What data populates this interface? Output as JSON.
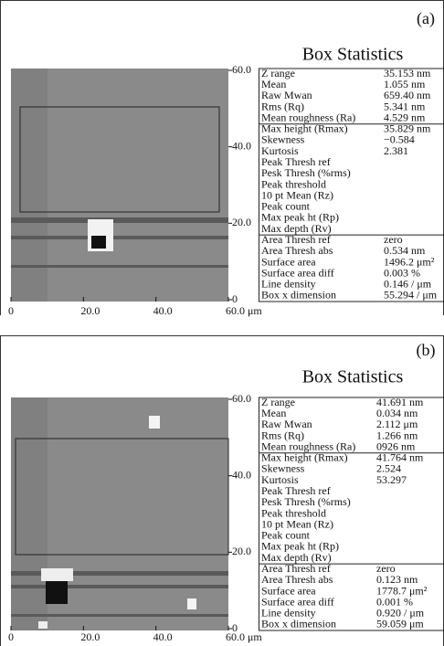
{
  "panels": [
    {
      "label": "(a)",
      "title": "Box Statistics",
      "y_ticks": [
        "60.0",
        "40.0",
        "20.0",
        "0"
      ],
      "x_ticks": [
        "0",
        "20.0",
        "40.0",
        "60.0 μm"
      ],
      "stats": [
        {
          "label": "Z range",
          "value": "35.153 nm"
        },
        {
          "label": "Mean",
          "value": "1.055 nm"
        },
        {
          "label": "Raw Mwan",
          "value": "659.40 nm"
        },
        {
          "label": "Rms (Rq)",
          "value": "5.341 nm"
        },
        {
          "label": "Mean roughness (Ra)",
          "value": "4.529 nm"
        },
        {
          "label": "Max height (Rmax)",
          "value": "35.829 nm"
        },
        {
          "label": "Skewness",
          "value": "−0.584"
        },
        {
          "label": "Kurtosis",
          "value": "2.381"
        },
        {
          "label": "Peak Thresh ref"
        },
        {
          "label": "Pesk Thresh (%rms)"
        },
        {
          "label": "Peak threshold"
        },
        {
          "label": "10 pt Mean (Rz)"
        },
        {
          "label": "Peak count"
        },
        {
          "label": "Max peak ht (Rp)"
        },
        {
          "label": "Max depth (Rv)"
        },
        {
          "label": "Area Thresh ref",
          "value": "zero"
        },
        {
          "label": "Area Thresh abs",
          "value": "0.534 nm"
        },
        {
          "label": "Surface area",
          "value": "1496.2 μm²"
        },
        {
          "label": "Surface area diff",
          "value": "0.003 %"
        },
        {
          "label": "Line density",
          "value": "0.146 / μm"
        },
        {
          "label": "Box x dimension",
          "value": "55.294 / μm"
        }
      ]
    },
    {
      "label": "(b)",
      "title": "Box Statistics",
      "y_ticks": [
        "60.0",
        "40.0",
        "20.0",
        "0"
      ],
      "x_ticks": [
        "0",
        "20.0",
        "40.0",
        "60.0 μm"
      ],
      "stats": [
        {
          "label": "Z range",
          "value": "41.691 nm"
        },
        {
          "label": "Mean",
          "value": "0.034 nm"
        },
        {
          "label": "Raw Mwan",
          "value": "2.112 μm"
        },
        {
          "label": "Rms (Rq)",
          "value": "1.266 nm"
        },
        {
          "label": "Mean roughness (Ra)",
          "value": "0926 nm"
        },
        {
          "label": "Max height (Rmax)",
          "value": "41.764 nm"
        },
        {
          "label": "Skewness",
          "value": "2.524"
        },
        {
          "label": "Kurtosis",
          "value": "53.297"
        },
        {
          "label": "Peak Thresh ref"
        },
        {
          "label": "Pesk Thresh (%rms)"
        },
        {
          "label": "Peak threshold"
        },
        {
          "label": "10 pt Mean (Rz)"
        },
        {
          "label": "Peak count"
        },
        {
          "label": "Max peak ht (Rp)"
        },
        {
          "label": "Max depth (Rv)"
        },
        {
          "label": "Area Thresh ref",
          "value": "zero"
        },
        {
          "label": "Area Thresh abs",
          "value": "0.123 nm"
        },
        {
          "label": "Surface area",
          "value": "1778.7 μm²"
        },
        {
          "label": "Surface area diff",
          "value": "0.001 %"
        },
        {
          "label": "Line density",
          "value": "0.920 / μm"
        },
        {
          "label": "Box x dimension",
          "value": "59.059 μm"
        }
      ]
    }
  ]
}
